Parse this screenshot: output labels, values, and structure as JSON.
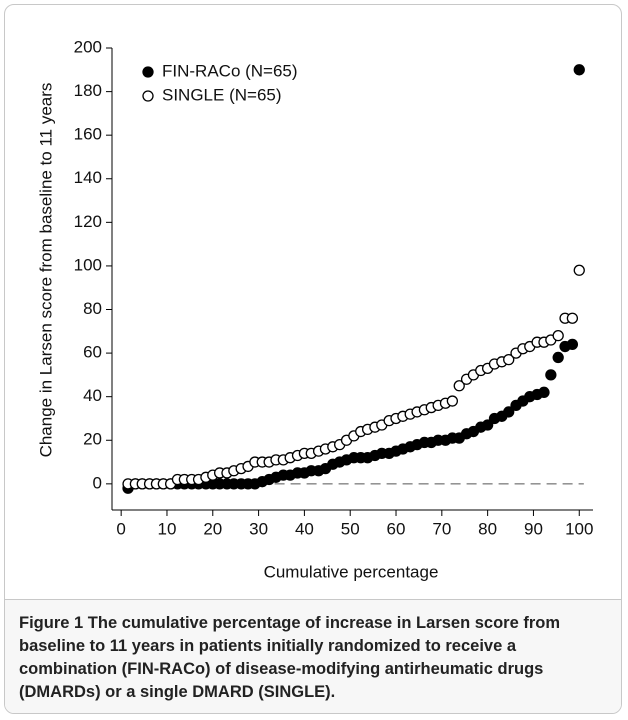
{
  "chart_data": {
    "type": "scatter",
    "x_label": "Cumulative percentage",
    "y_label": "Change in Larsen score from baseline to 11 years",
    "xlim": [
      -2,
      103
    ],
    "ylim": [
      -12,
      200
    ],
    "xticks": [
      0,
      10,
      20,
      30,
      40,
      50,
      60,
      70,
      80,
      90,
      100
    ],
    "yticks": [
      0,
      20,
      40,
      60,
      80,
      100,
      120,
      140,
      160,
      180,
      200
    ],
    "reference_line": 0,
    "legend": "top-left",
    "x": [
      1.5,
      3.1,
      4.6,
      6.2,
      7.7,
      9.2,
      10.8,
      12.3,
      13.8,
      15.4,
      16.9,
      18.5,
      20,
      21.5,
      23.1,
      24.6,
      26.2,
      27.7,
      29.2,
      30.8,
      32.3,
      33.8,
      35.4,
      36.9,
      38.5,
      40,
      41.5,
      43.1,
      44.6,
      46.2,
      47.7,
      49.2,
      50.8,
      52.3,
      53.8,
      55.4,
      56.9,
      58.5,
      60,
      61.5,
      63.1,
      64.6,
      66.2,
      67.7,
      69.2,
      70.8,
      72.3,
      73.8,
      75.4,
      76.9,
      78.5,
      80,
      81.5,
      83.1,
      84.6,
      86.2,
      87.7,
      89.2,
      90.8,
      92.3,
      93.8,
      95.4,
      96.9,
      98.5,
      100
    ],
    "series": [
      {
        "name": "FIN-RACo (N=65)",
        "color": "#000000",
        "marker": "filled",
        "values": [
          -2,
          0,
          0,
          0,
          0,
          0,
          0,
          0,
          0,
          0,
          0,
          0,
          0,
          0,
          0,
          0,
          0,
          0,
          0,
          1,
          2,
          3,
          4,
          4,
          5,
          5,
          6,
          6,
          7,
          9,
          10,
          11,
          12,
          12,
          12,
          13,
          14,
          14,
          15,
          16,
          17,
          18,
          19,
          19,
          20,
          20,
          21,
          21,
          23,
          24,
          26,
          27,
          30,
          31,
          33,
          36,
          38,
          40,
          41,
          42,
          50,
          58,
          63,
          64,
          190
        ]
      },
      {
        "name": "SINGLE (N=65)",
        "color": "#000000",
        "marker": "open",
        "values": [
          0,
          0,
          0,
          0,
          0,
          0,
          0,
          2,
          2,
          2,
          2,
          3,
          4,
          5,
          5,
          6,
          7,
          8,
          10,
          10,
          10,
          11,
          11,
          12,
          13,
          14,
          14,
          15,
          16,
          17,
          18,
          20,
          22,
          24,
          25,
          26,
          27,
          29,
          30,
          31,
          32,
          33,
          34,
          35,
          36,
          37,
          38,
          45,
          48,
          50,
          52,
          53,
          55,
          56,
          57,
          60,
          62,
          63,
          65,
          65,
          66,
          68,
          76,
          76,
          98
        ]
      }
    ]
  },
  "caption": {
    "label": "Figure 1",
    "text": "The cumulative percentage of increase in Larsen score from baseline to 11 years in patients initially randomized to receive a combination (FIN-RACo) of disease-modifying antirheumatic drugs (DMARDs) or a single DMARD (SINGLE)."
  }
}
